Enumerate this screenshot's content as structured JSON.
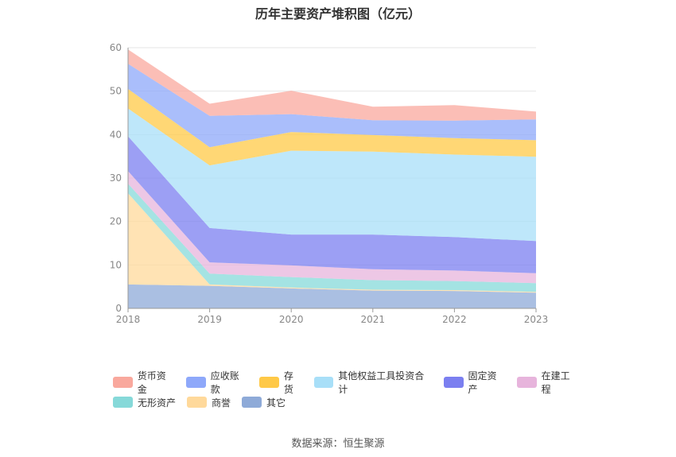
{
  "chart_data": {
    "type": "area",
    "stacked": true,
    "title": "历年主要资产堆积图（亿元）",
    "x": [
      "2018",
      "2019",
      "2020",
      "2021",
      "2022",
      "2023"
    ],
    "ylim": [
      0,
      60
    ],
    "yticks": [
      0,
      10,
      20,
      30,
      40,
      50,
      60
    ],
    "grid": true,
    "legend_position": "bottom",
    "series": [
      {
        "name": "其它",
        "color": "#8eaad8",
        "values": [
          5.5,
          5.2,
          4.6,
          4.1,
          4.0,
          3.6
        ]
      },
      {
        "name": "商誉",
        "color": "#ffd99b",
        "values": [
          21.0,
          0.3,
          0.2,
          0.2,
          0.2,
          0.2
        ]
      },
      {
        "name": "无形资产",
        "color": "#86d9d9",
        "values": [
          2.2,
          2.5,
          2.4,
          2.2,
          2.1,
          2.0
        ]
      },
      {
        "name": "在建工程",
        "color": "#e7b4dc",
        "values": [
          2.9,
          2.6,
          2.7,
          2.5,
          2.4,
          2.3
        ]
      },
      {
        "name": "固定资产",
        "color": "#7b7ff0",
        "values": [
          8.0,
          7.9,
          7.1,
          8.0,
          7.7,
          7.4
        ]
      },
      {
        "name": "其他权益工具投资合计",
        "color": "#a8dff8",
        "values": [
          6.4,
          14.4,
          19.3,
          19.1,
          19.0,
          19.4
        ]
      },
      {
        "name": "存货",
        "color": "#ffc947",
        "values": [
          4.5,
          4.2,
          4.3,
          3.8,
          3.8,
          3.8
        ]
      },
      {
        "name": "应收账款",
        "color": "#8ea8fa",
        "values": [
          5.8,
          7.2,
          4.1,
          3.4,
          4.0,
          4.8
        ]
      },
      {
        "name": "货币资金",
        "color": "#f9a89d",
        "values": [
          3.3,
          2.8,
          5.4,
          3.1,
          3.6,
          1.8
        ]
      }
    ]
  },
  "legend": {
    "rows": [
      [
        {
          "label": "货币资金",
          "color": "#f9a89d"
        },
        {
          "label": "应收账款",
          "color": "#8ea8fa"
        },
        {
          "label": "存货",
          "color": "#ffc947"
        },
        {
          "label": "其他权益工具投资合计",
          "color": "#a8dff8"
        },
        {
          "label": "固定资产",
          "color": "#7b7ff0"
        },
        {
          "label": "在建工程",
          "color": "#e7b4dc"
        }
      ],
      [
        {
          "label": "无形资产",
          "color": "#86d9d9"
        },
        {
          "label": "商誉",
          "color": "#ffd99b"
        },
        {
          "label": "其它",
          "color": "#8eaad8"
        }
      ]
    ]
  },
  "source": "数据来源：恒生聚源"
}
